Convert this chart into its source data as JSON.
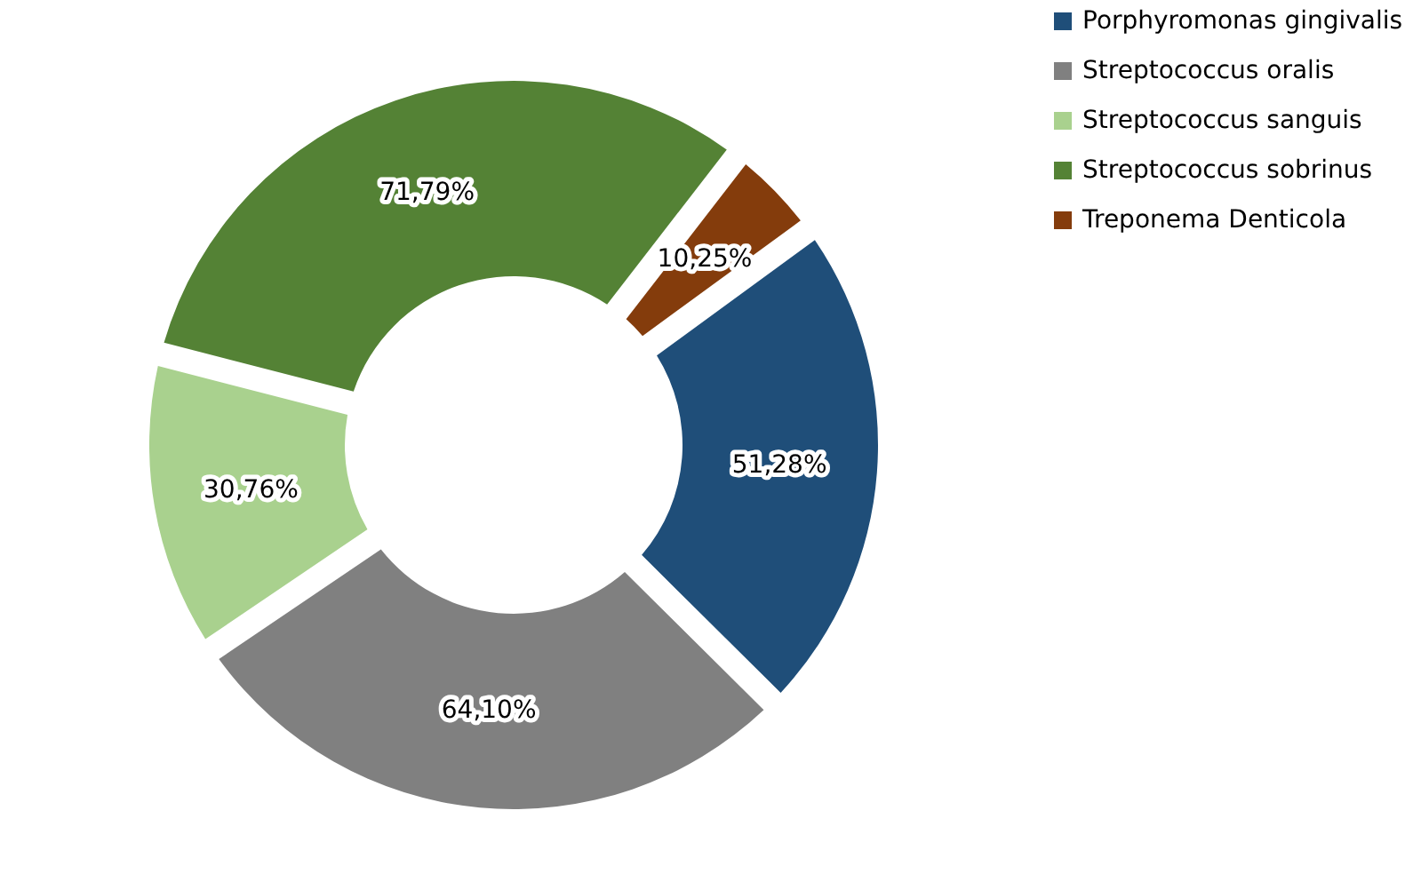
{
  "chart_data": {
    "type": "donut",
    "categories": [
      "Porphyromonas gingivalis",
      "Streptococcus oralis",
      "Streptococcus sanguis",
      "Streptococcus sobrinus",
      "Treponema Denticola"
    ],
    "values": [
      51.28,
      64.1,
      30.76,
      71.79,
      10.25
    ],
    "value_labels": [
      "51,28%",
      "64,10%",
      "30,76%",
      "71,79%",
      "10,25%"
    ],
    "colors": [
      "#1f4e79",
      "#808080",
      "#a9d18e",
      "#548235",
      "#843c0c"
    ],
    "legend": "right"
  }
}
